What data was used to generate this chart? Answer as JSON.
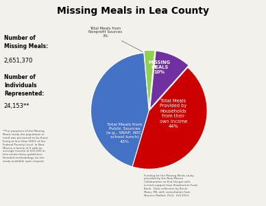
{
  "title": "Missing Meals in Lea County",
  "slices": [
    44,
    43,
    10,
    3
  ],
  "colors": [
    "#4472C4",
    "#CC0000",
    "#7030A0",
    "#92D050"
  ],
  "explode": [
    0,
    0,
    0.04,
    0.04
  ],
  "startangle": 95,
  "label_blue": "Total Meals\nProvided by\nHouseholds\nfrom their\nown income\n44%",
  "label_red": "Total Meals from\nPublic Sources\n(e.g., SNAP, WIC,\nschool lunch)\n43%",
  "label_purple": "MISSING\nMEALS\n10%",
  "label_green": "Total Meals from\nNonprofit Sources\n3%",
  "left_bold1": "Number of\nMissing Meals:",
  "left_val1": "2,651,370",
  "left_bold2": "Number of\nIndividuals\nRepresented:",
  "left_val2": "24,153**",
  "footnote_left": "**For purposes of the Missing\nMeals study the population in\nneed was presumed to be those\nliving at less than 185% of the\nFederal Poverty Level. In New\nMexico a family of 3 with an\naverage income of $31,500 or\nless meets these guidelines.\nDetailed methodology for the\nstudy available upon request.",
  "footnote_right": "Funding for the Missing Meals study\nprovided by the New Mexico\nCollaboration to End Hunger with\nin-kind support from Roadrunner Food\nBank.  Data collection by Bevin\nMoon, MS, with consultation from\nMaurice Moffett, Ph.D.  Fall 2013.",
  "background_color": "#F2F1EC"
}
